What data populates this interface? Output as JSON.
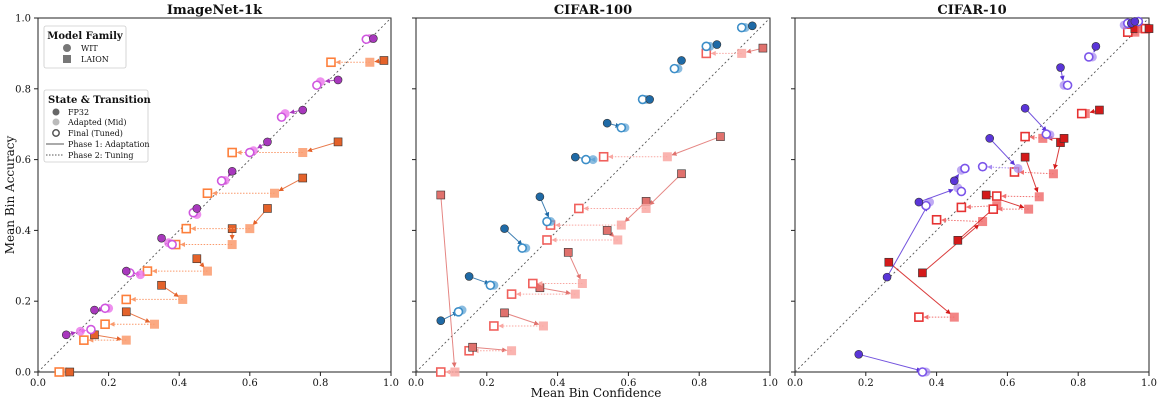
{
  "figure": {
    "xlabel": "Mean Bin Confidence",
    "ylabel": "Mean Bin Accuracy",
    "ticks": [
      "0.0",
      "0.2",
      "0.4",
      "0.6",
      "0.8",
      "1.0"
    ]
  },
  "legend": {
    "family_title": "Model Family",
    "wit_label": "WIT",
    "laion_label": "LAION",
    "state_title": "State & Transition",
    "fp32_label": "FP32",
    "adapted_label": "Adapted (Mid)",
    "final_label": "Final (Tuned)",
    "phase1_label": "Phase 1: Adaptation",
    "phase2_label": "Phase 2: Tuning"
  },
  "colors": {
    "panel0": {
      "wit": [
        "#a838bd",
        "#e86be8",
        "#cf56df"
      ],
      "laion": [
        "#e4622a",
        "#fa9a6c",
        "#fd7f3b"
      ]
    },
    "panel1": {
      "wit": [
        "#1f6aa6",
        "#63a6d6",
        "#3c8ec8"
      ],
      "laion": [
        "#e0716d",
        "#f9a7a2",
        "#f0605c"
      ]
    },
    "panel2": {
      "wit": [
        "#5a35d8",
        "#a98ef0",
        "#7b55ea"
      ],
      "laion": [
        "#d41a1a",
        "#f07070",
        "#e63232"
      ]
    }
  },
  "chart_data": [
    {
      "type": "scatter",
      "title": "ImageNet-1k",
      "xlim": [
        0,
        1
      ],
      "ylim": [
        0,
        1
      ],
      "wit": [
        [
          [
            0.08,
            0.105
          ],
          [
            0.12,
            0.115
          ],
          [
            0.15,
            0.12
          ]
        ],
        [
          [
            0.16,
            0.175
          ],
          [
            0.2,
            0.18
          ],
          [
            0.19,
            0.18
          ]
        ],
        [
          [
            0.25,
            0.285
          ],
          [
            0.29,
            0.275
          ],
          [
            0.26,
            0.28
          ]
        ],
        [
          [
            0.35,
            0.378
          ],
          [
            0.37,
            0.365
          ],
          [
            0.38,
            0.36
          ]
        ],
        [
          [
            0.45,
            0.462
          ],
          [
            0.45,
            0.445
          ],
          [
            0.44,
            0.45
          ]
        ],
        [
          [
            0.55,
            0.567
          ],
          [
            0.53,
            0.541
          ],
          [
            0.52,
            0.54
          ]
        ],
        [
          [
            0.65,
            0.65
          ],
          [
            0.61,
            0.625
          ],
          [
            0.6,
            0.62
          ]
        ],
        [
          [
            0.75,
            0.74
          ],
          [
            0.7,
            0.73
          ],
          [
            0.69,
            0.72
          ]
        ],
        [
          [
            0.85,
            0.825
          ],
          [
            0.8,
            0.82
          ],
          [
            0.79,
            0.81
          ]
        ],
        [
          [
            0.95,
            0.942
          ],
          [
            0.94,
            0.942
          ],
          [
            0.93,
            0.94
          ]
        ]
      ],
      "laion": [
        [
          [
            0.09,
            0.0
          ],
          [
            0.07,
            0.0
          ],
          [
            0.06,
            0.0
          ]
        ],
        [
          [
            0.16,
            0.105
          ],
          [
            0.25,
            0.09
          ],
          [
            0.13,
            0.09
          ]
        ],
        [
          [
            0.25,
            0.17
          ],
          [
            0.33,
            0.135
          ],
          [
            0.19,
            0.135
          ]
        ],
        [
          [
            0.35,
            0.245
          ],
          [
            0.41,
            0.205
          ],
          [
            0.25,
            0.205
          ]
        ],
        [
          [
            0.45,
            0.32
          ],
          [
            0.48,
            0.285
          ],
          [
            0.31,
            0.285
          ]
        ],
        [
          [
            0.55,
            0.405
          ],
          [
            0.55,
            0.36
          ],
          [
            0.39,
            0.36
          ]
        ],
        [
          [
            0.65,
            0.462
          ],
          [
            0.6,
            0.405
          ],
          [
            0.42,
            0.405
          ]
        ],
        [
          [
            0.75,
            0.548
          ],
          [
            0.67,
            0.505
          ],
          [
            0.48,
            0.505
          ]
        ],
        [
          [
            0.85,
            0.65
          ],
          [
            0.75,
            0.62
          ],
          [
            0.55,
            0.62
          ]
        ],
        [
          [
            0.98,
            0.88
          ],
          [
            0.94,
            0.875
          ],
          [
            0.83,
            0.875
          ]
        ]
      ]
    },
    {
      "type": "scatter",
      "title": "CIFAR-100",
      "xlim": [
        0,
        1
      ],
      "ylim": [
        0,
        1
      ],
      "wit": [
        [
          [
            0.07,
            0.145
          ],
          [
            0.13,
            0.175
          ],
          [
            0.12,
            0.17
          ]
        ],
        [
          [
            0.15,
            0.27
          ],
          [
            0.22,
            0.245
          ],
          [
            0.21,
            0.245
          ]
        ],
        [
          [
            0.25,
            0.405
          ],
          [
            0.31,
            0.35
          ],
          [
            0.3,
            0.35
          ]
        ],
        [
          [
            0.35,
            0.495
          ],
          [
            0.38,
            0.425
          ],
          [
            0.37,
            0.425
          ]
        ],
        [
          [
            0.45,
            0.607
          ],
          [
            0.5,
            0.6
          ],
          [
            0.48,
            0.6
          ]
        ],
        [
          [
            0.54,
            0.703
          ],
          [
            0.59,
            0.69
          ],
          [
            0.58,
            0.69
          ]
        ],
        [
          [
            0.66,
            0.77
          ],
          [
            0.65,
            0.77
          ],
          [
            0.64,
            0.77
          ]
        ],
        [
          [
            0.75,
            0.88
          ],
          [
            0.74,
            0.857
          ],
          [
            0.73,
            0.857
          ]
        ],
        [
          [
            0.85,
            0.925
          ],
          [
            0.83,
            0.92
          ],
          [
            0.82,
            0.92
          ]
        ],
        [
          [
            0.95,
            0.978
          ],
          [
            0.93,
            0.973
          ],
          [
            0.92,
            0.973
          ]
        ]
      ],
      "laion": [
        [
          [
            0.07,
            0.5
          ],
          [
            0.11,
            0.0
          ],
          [
            0.07,
            0.0
          ]
        ],
        [
          [
            0.16,
            0.07
          ],
          [
            0.27,
            0.06
          ],
          [
            0.15,
            0.06
          ]
        ],
        [
          [
            0.25,
            0.167
          ],
          [
            0.36,
            0.13
          ],
          [
            0.22,
            0.13
          ]
        ],
        [
          [
            0.35,
            0.238
          ],
          [
            0.45,
            0.22
          ],
          [
            0.27,
            0.22
          ]
        ],
        [
          [
            0.43,
            0.338
          ],
          [
            0.47,
            0.25
          ],
          [
            0.33,
            0.25
          ]
        ],
        [
          [
            0.54,
            0.4
          ],
          [
            0.57,
            0.373
          ],
          [
            0.37,
            0.373
          ]
        ],
        [
          [
            0.65,
            0.482
          ],
          [
            0.58,
            0.415
          ],
          [
            0.38,
            0.415
          ]
        ],
        [
          [
            0.75,
            0.56
          ],
          [
            0.65,
            0.462
          ],
          [
            0.46,
            0.462
          ]
        ],
        [
          [
            0.86,
            0.665
          ],
          [
            0.71,
            0.608
          ],
          [
            0.53,
            0.608
          ]
        ],
        [
          [
            0.98,
            0.915
          ],
          [
            0.92,
            0.9
          ],
          [
            0.82,
            0.9
          ]
        ]
      ]
    },
    {
      "type": "scatter",
      "title": "CIFAR-10",
      "xlim": [
        0,
        1
      ],
      "ylim": [
        0,
        1
      ],
      "wit": [
        [
          [
            0.18,
            0.05
          ],
          [
            0.37,
            0.0
          ],
          [
            0.36,
            0.0
          ]
        ],
        [
          [
            0.26,
            0.268
          ],
          [
            0.38,
            0.48
          ],
          [
            0.37,
            0.47
          ]
        ],
        [
          [
            0.35,
            0.48
          ],
          [
            0.46,
            0.52
          ],
          [
            0.47,
            0.51
          ]
        ],
        [
          [
            0.45,
            0.54
          ],
          [
            0.47,
            0.57
          ],
          [
            0.48,
            0.575
          ]
        ],
        [
          [
            0.55,
            0.66
          ],
          [
            0.63,
            0.575
          ],
          [
            0.53,
            0.58
          ]
        ],
        [
          [
            0.65,
            0.745
          ],
          [
            0.72,
            0.67
          ],
          [
            0.71,
            0.672
          ]
        ],
        [
          [
            0.75,
            0.86
          ],
          [
            0.76,
            0.81
          ],
          [
            0.77,
            0.81
          ]
        ],
        [
          [
            0.85,
            0.92
          ],
          [
            0.84,
            0.89
          ],
          [
            0.83,
            0.89
          ]
        ],
        [
          [
            0.95,
            0.985
          ],
          [
            0.93,
            0.98
          ],
          [
            0.94,
            0.985
          ]
        ],
        [
          [
            0.96,
            0.99
          ],
          [
            0.96,
            0.99
          ],
          [
            0.97,
            0.99
          ]
        ]
      ],
      "laion": [
        [
          [
            0.265,
            0.31
          ],
          [
            0.45,
            0.155
          ],
          [
            0.35,
            0.155
          ]
        ],
        [
          [
            0.36,
            0.28
          ],
          [
            0.53,
            0.425
          ],
          [
            0.4,
            0.43
          ]
        ],
        [
          [
            0.46,
            0.372
          ],
          [
            0.57,
            0.47
          ],
          [
            0.47,
            0.465
          ]
        ],
        [
          [
            0.54,
            0.5
          ],
          [
            0.66,
            0.46
          ],
          [
            0.56,
            0.46
          ]
        ],
        [
          [
            0.65,
            0.607
          ],
          [
            0.69,
            0.495
          ],
          [
            0.57,
            0.497
          ]
        ],
        [
          [
            0.75,
            0.648
          ],
          [
            0.73,
            0.56
          ],
          [
            0.62,
            0.565
          ]
        ],
        [
          [
            0.76,
            0.66
          ],
          [
            0.7,
            0.66
          ],
          [
            0.65,
            0.665
          ]
        ],
        [
          [
            0.86,
            0.74
          ],
          [
            0.82,
            0.73
          ],
          [
            0.81,
            0.73
          ]
        ],
        [
          [
            0.96,
            0.97
          ],
          [
            0.96,
            0.96
          ],
          [
            0.94,
            0.96
          ]
        ],
        [
          [
            1.0,
            0.97
          ],
          [
            0.98,
            0.97
          ],
          [
            0.99,
            0.97
          ]
        ]
      ]
    }
  ]
}
